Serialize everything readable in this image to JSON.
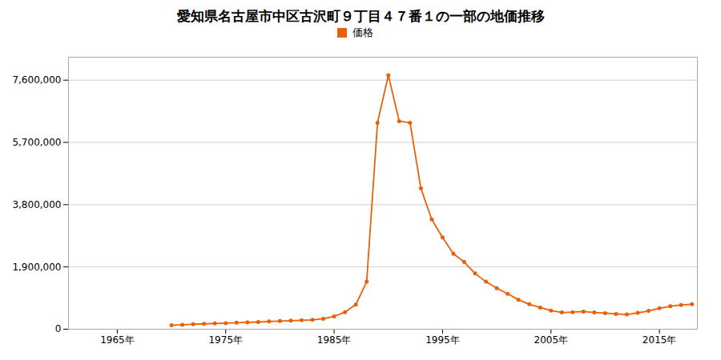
{
  "chart_data": {
    "type": "line",
    "title": "愛知県名古屋市中区古沢町９丁目４７番１の一部の地価推移",
    "x": [
      1970,
      1971,
      1972,
      1973,
      1974,
      1975,
      1976,
      1977,
      1978,
      1979,
      1980,
      1981,
      1982,
      1983,
      1984,
      1985,
      1986,
      1987,
      1988,
      1989,
      1990,
      1991,
      1992,
      1993,
      1994,
      1995,
      1996,
      1997,
      1998,
      1999,
      2000,
      2001,
      2002,
      2003,
      2004,
      2005,
      2006,
      2007,
      2008,
      2009,
      2010,
      2011,
      2012,
      2013,
      2014,
      2015,
      2016,
      2017,
      2018
    ],
    "series": [
      {
        "name": "価格",
        "color": "#e8600a",
        "marker": "circle",
        "values": [
          120000,
          135000,
          150000,
          165000,
          175000,
          185000,
          200000,
          210000,
          220000,
          235000,
          248000,
          260000,
          272000,
          285000,
          320000,
          390000,
          520000,
          750000,
          1450000,
          6300000,
          7750000,
          6350000,
          6300000,
          4300000,
          3350000,
          2800000,
          2300000,
          2050000,
          1700000,
          1450000,
          1250000,
          1080000,
          900000,
          760000,
          660000,
          570000,
          510000,
          520000,
          540000,
          510000,
          490000,
          465000,
          450000,
          500000,
          560000,
          640000,
          700000,
          740000,
          760000
        ]
      }
    ],
    "xlim": [
      1960.5,
      2018.5
    ],
    "xticks": [
      {
        "value": 1965,
        "label": "1965年"
      },
      {
        "value": 1975,
        "label": "1975年"
      },
      {
        "value": 1985,
        "label": "1985年"
      },
      {
        "value": 1995,
        "label": "1995年"
      },
      {
        "value": 2005,
        "label": "2005年"
      },
      {
        "value": 2015,
        "label": "2015年"
      }
    ],
    "ylim": [
      0,
      8300000
    ],
    "yticks": [
      0,
      {
        "value": 1900000,
        "label": "1,900,000"
      },
      {
        "value": 3800000,
        "label": "3,800,000"
      },
      {
        "value": 5700000,
        "label": "5,700,000"
      },
      {
        "value": 7600000,
        "label": "7,600,000"
      }
    ],
    "grid": "y",
    "legend": "top"
  }
}
